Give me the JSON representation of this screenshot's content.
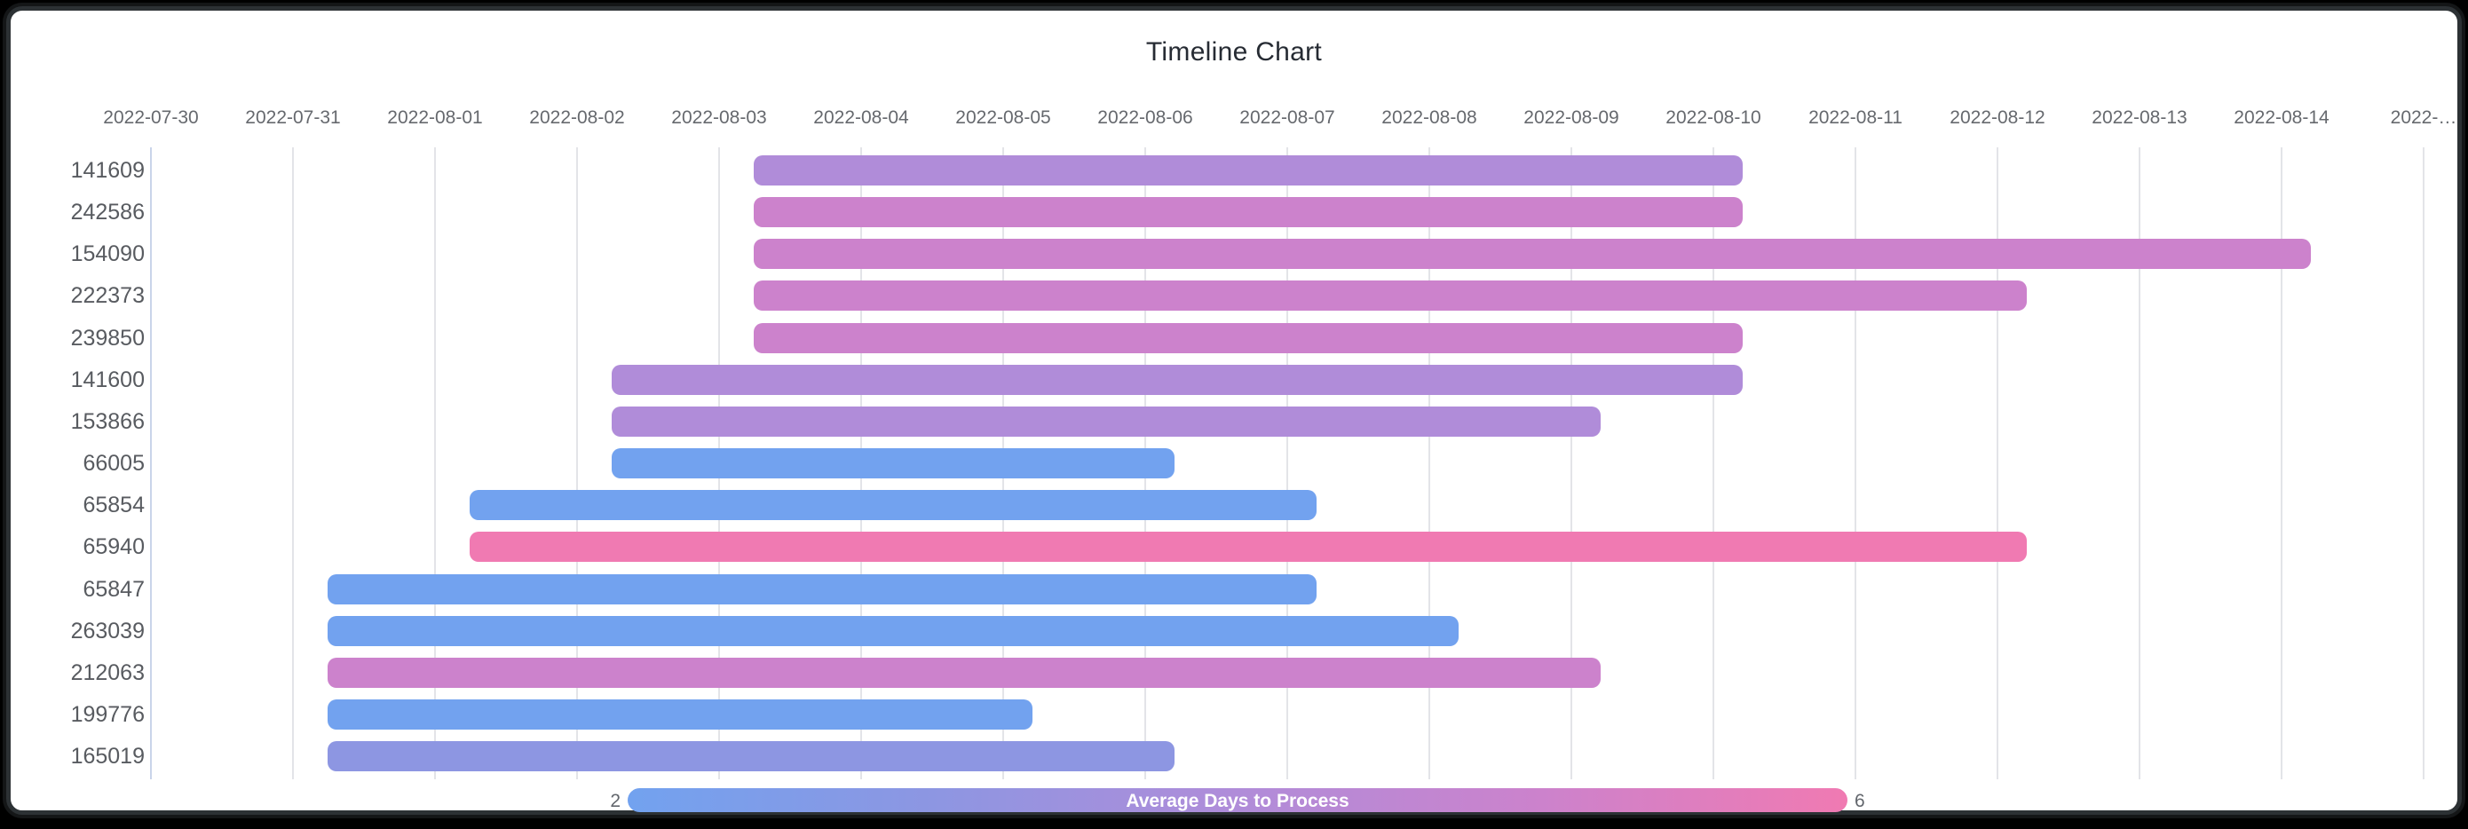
{
  "window": {
    "background_color": "#000000",
    "frame_border_color": "#2c3134",
    "card_color": "#ffffff"
  },
  "chart_data": {
    "type": "timeline",
    "title": "Timeline Chart",
    "grid": "on",
    "x_axis": {
      "start_date": "2022-07-30",
      "days_per_tick": 1,
      "tick_labels": [
        "2022-07-30",
        "2022-07-31",
        "2022-08-01",
        "2022-08-02",
        "2022-08-03",
        "2022-08-04",
        "2022-08-05",
        "2022-08-06",
        "2022-08-07",
        "2022-08-08",
        "2022-08-09",
        "2022-08-10",
        "2022-08-11",
        "2022-08-12",
        "2022-08-13",
        "2022-08-14",
        "2022-…"
      ]
    },
    "legend": {
      "position": "bottom",
      "label": "Average Days to Process",
      "min": "2",
      "max": "6",
      "gradient_colors": [
        "#72a2ef",
        "#8d96e2",
        "#b08cd9",
        "#cc82cc",
        "#f07ab2"
      ]
    },
    "color_scale": {
      "2": "#72a2ef",
      "3": "#8d96e2",
      "4": "#b08cd9",
      "5": "#cc82cc",
      "6": "#f07ab2"
    },
    "rows": [
      {
        "id": "141609",
        "start": "2022-08-03",
        "end": "2022-08-10",
        "avg_days": 4
      },
      {
        "id": "242586",
        "start": "2022-08-03",
        "end": "2022-08-10",
        "avg_days": 5
      },
      {
        "id": "154090",
        "start": "2022-08-03",
        "end": "2022-08-14",
        "avg_days": 5
      },
      {
        "id": "222373",
        "start": "2022-08-03",
        "end": "2022-08-12",
        "avg_days": 5
      },
      {
        "id": "239850",
        "start": "2022-08-03",
        "end": "2022-08-10",
        "avg_days": 5
      },
      {
        "id": "141600",
        "start": "2022-08-02",
        "end": "2022-08-10",
        "avg_days": 4
      },
      {
        "id": "153866",
        "start": "2022-08-02",
        "end": "2022-08-09",
        "avg_days": 4
      },
      {
        "id": "66005",
        "start": "2022-08-02",
        "end": "2022-08-06",
        "avg_days": 2
      },
      {
        "id": "65854",
        "start": "2022-08-01",
        "end": "2022-08-07",
        "avg_days": 2
      },
      {
        "id": "65940",
        "start": "2022-08-01",
        "end": "2022-08-12",
        "avg_days": 6
      },
      {
        "id": "65847",
        "start": "2022-07-31",
        "end": "2022-08-07",
        "avg_days": 2
      },
      {
        "id": "263039",
        "start": "2022-07-31",
        "end": "2022-08-08",
        "avg_days": 2
      },
      {
        "id": "212063",
        "start": "2022-07-31",
        "end": "2022-08-09",
        "avg_days": 5
      },
      {
        "id": "199776",
        "start": "2022-07-31",
        "end": "2022-08-05",
        "avg_days": 2
      },
      {
        "id": "165019",
        "start": "2022-07-31",
        "end": "2022-08-06",
        "avg_days": 3
      }
    ]
  }
}
